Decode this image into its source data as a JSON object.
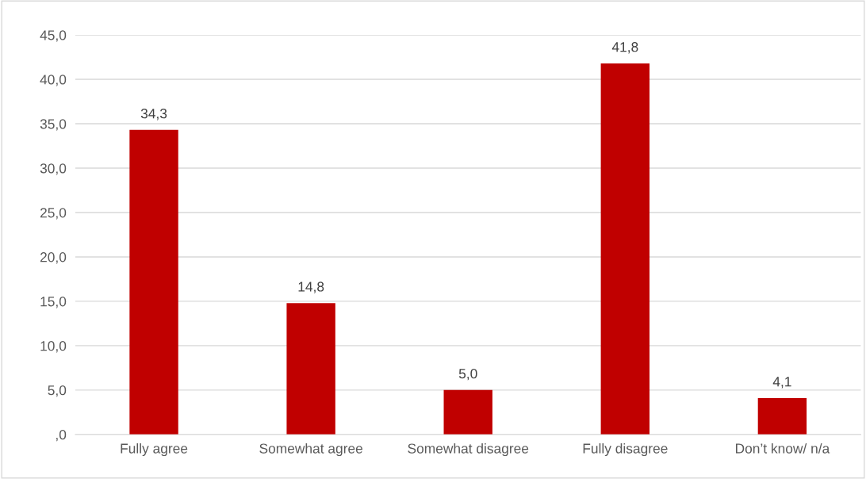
{
  "chart_data": {
    "type": "bar",
    "categories": [
      "Fully agree",
      "Somewhat agree",
      "Somewhat disagree",
      "Fully disagree",
      "Don’t know/ n/a"
    ],
    "values": [
      34.3,
      14.8,
      5.0,
      41.8,
      4.1
    ],
    "color": "#c00000",
    "value_labels": [
      "34,3",
      "14,8",
      "5,0",
      "41,8",
      "4,1"
    ],
    "ylim": [
      0,
      45
    ],
    "yticks": [
      {
        "value": 0,
        "label": ",0"
      },
      {
        "value": 5,
        "label": "5,0"
      },
      {
        "value": 10,
        "label": "10,0"
      },
      {
        "value": 15,
        "label": "15,0"
      },
      {
        "value": 20,
        "label": "20,0"
      },
      {
        "value": 25,
        "label": "25,0"
      },
      {
        "value": 30,
        "label": "30,0"
      },
      {
        "value": 35,
        "label": "35,0"
      },
      {
        "value": 40,
        "label": "40,0"
      },
      {
        "value": 45,
        "label": "45,0"
      }
    ],
    "grid": "y",
    "legend": false
  }
}
